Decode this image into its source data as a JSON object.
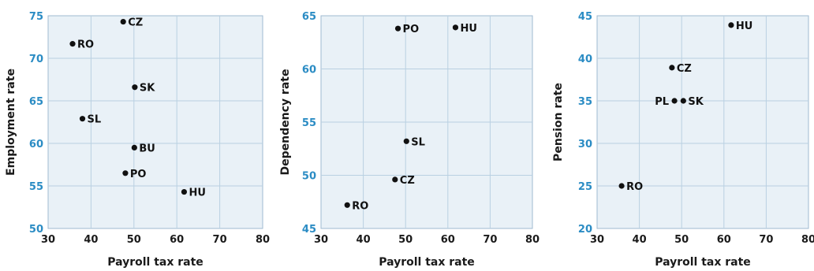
{
  "colors": {
    "axis_tick_y": "#2b8cc4",
    "plot_background": "#e9f1f7",
    "grid": "#b9d0e2",
    "point": "#111111"
  },
  "chart_data": [
    {
      "type": "scatter",
      "xlabel": "Payroll tax rate",
      "ylabel": "Employment rate",
      "xlim": [
        30,
        80
      ],
      "ylim": [
        50,
        75
      ],
      "xticks": [
        30,
        40,
        50,
        60,
        70,
        80
      ],
      "yticks": [
        50,
        55,
        60,
        65,
        70,
        75
      ],
      "grid": true,
      "points": [
        {
          "label": "CZ",
          "x": 47.5,
          "y": 74.3
        },
        {
          "label": "RO",
          "x": 35.7,
          "y": 71.7
        },
        {
          "label": "SK",
          "x": 50.2,
          "y": 66.6
        },
        {
          "label": "SL",
          "x": 38.0,
          "y": 62.9
        },
        {
          "label": "BU",
          "x": 50.1,
          "y": 59.5
        },
        {
          "label": "PO",
          "x": 48.0,
          "y": 56.5
        },
        {
          "label": "HU",
          "x": 61.7,
          "y": 54.3
        }
      ]
    },
    {
      "type": "scatter",
      "xlabel": "Payroll tax rate",
      "ylabel": "Dependency rate",
      "xlim": [
        30,
        80
      ],
      "ylim": [
        45,
        65
      ],
      "xticks": [
        30,
        40,
        50,
        60,
        70,
        80
      ],
      "yticks": [
        45,
        50,
        55,
        60,
        65
      ],
      "grid": true,
      "points": [
        {
          "label": "PO",
          "x": 48.2,
          "y": 63.8
        },
        {
          "label": "HU",
          "x": 61.8,
          "y": 63.9
        },
        {
          "label": "SL",
          "x": 50.2,
          "y": 53.2
        },
        {
          "label": "CZ",
          "x": 47.5,
          "y": 49.6
        },
        {
          "label": "RO",
          "x": 36.2,
          "y": 47.2
        }
      ]
    },
    {
      "type": "scatter",
      "xlabel": "Payroll tax rate",
      "ylabel": "Pension rate",
      "xlim": [
        30,
        80
      ],
      "ylim": [
        20,
        45
      ],
      "xticks": [
        30,
        40,
        50,
        60,
        70,
        80
      ],
      "yticks": [
        20,
        25,
        30,
        35,
        40,
        45
      ],
      "grid": true,
      "points": [
        {
          "label": "HU",
          "x": 61.7,
          "y": 43.9
        },
        {
          "label": "CZ",
          "x": 47.7,
          "y": 38.9
        },
        {
          "label": "PL",
          "x": 48.3,
          "y": 35.0,
          "label_side": "left"
        },
        {
          "label": "SK",
          "x": 50.4,
          "y": 35.0
        },
        {
          "label": "RO",
          "x": 35.8,
          "y": 25.0
        }
      ]
    }
  ]
}
